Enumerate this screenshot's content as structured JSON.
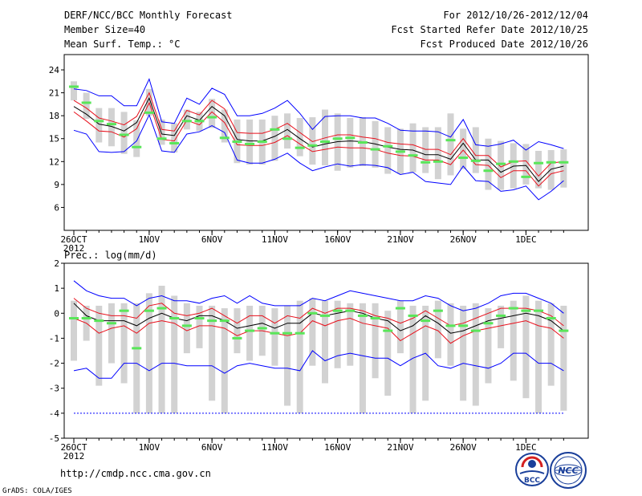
{
  "header": {
    "title": "DERF/NCC/BCC Monthly Forecast",
    "member_size": "Member Size=40",
    "variable": "Mean Surf. Temp.: °C",
    "period": "For 2012/10/26-2012/12/04",
    "started": "Fcst Started Refer Date 2012/10/25",
    "produced": "Fcst Produced Date 2012/10/26"
  },
  "footer": {
    "url": "http://cmdp.ncc.cma.gov.cn",
    "grads": "GrADS: COLA/IGES",
    "logo_bcc": "BCC",
    "logo_ncc": "NCC"
  },
  "colors": {
    "box": "#d2d2d2",
    "mean": "#000000",
    "spread": "#e8101c",
    "envelope": "#0000ff",
    "obs": "#59e659"
  },
  "chart_data": [
    {
      "type": "line",
      "title": "Mean Surf. Temp.: °C",
      "ylabel": "°C",
      "ylim": [
        3,
        26
      ],
      "yticks": [
        6,
        9,
        12,
        15,
        18,
        21,
        24
      ],
      "xticks": [
        {
          "day": 0,
          "label": "26OCT",
          "sub": "2012"
        },
        {
          "day": 6,
          "label": "1NOV"
        },
        {
          "day": 11,
          "label": "6NOV"
        },
        {
          "day": 16,
          "label": "11NOV"
        },
        {
          "day": 21,
          "label": "16NOV"
        },
        {
          "day": 26,
          "label": "21NOV"
        },
        {
          "day": 31,
          "label": "26NOV"
        },
        {
          "day": 36,
          "label": "1DEC"
        }
      ],
      "series": [
        {
          "name": "max",
          "values": [
            21.5,
            21.3,
            20.6,
            20.6,
            19.3,
            19.3,
            22.8,
            17.2,
            17,
            20.3,
            19.5,
            21.6,
            20.8,
            18,
            18,
            18.3,
            19,
            20,
            18.3,
            16.2,
            17.9,
            18,
            18,
            17.7,
            17.7,
            17,
            16.1,
            16,
            16,
            15.9,
            15.2,
            17.5,
            14.2,
            14,
            14.3,
            14.8,
            13.5,
            14.6,
            14.2,
            13.7
          ]
        },
        {
          "name": "upper",
          "values": [
            20,
            19,
            17.7,
            17.3,
            16.8,
            17.9,
            21,
            16.2,
            16,
            18.7,
            18.1,
            20,
            18.9,
            15.8,
            15.7,
            15.7,
            16.2,
            17,
            15.8,
            14.6,
            15.1,
            15.5,
            15.5,
            15.2,
            15,
            14.5,
            14.3,
            14.2,
            13.6,
            13.6,
            12.9,
            15,
            12.8,
            12.8,
            11.3,
            12,
            12.1,
            10.1,
            11.8,
            12
          ]
        },
        {
          "name": "mean",
          "values": [
            19.2,
            18.2,
            16.9,
            16.6,
            16,
            17.1,
            20.3,
            15.6,
            15.4,
            18,
            17.4,
            19.2,
            18,
            14.9,
            14.7,
            14.7,
            15.3,
            16.2,
            15,
            13.9,
            14.3,
            14.6,
            14.7,
            14.6,
            14.3,
            13.9,
            13.6,
            13.5,
            12.9,
            12.9,
            12.3,
            14.4,
            12.2,
            12.2,
            10.6,
            11.4,
            11.5,
            9.4,
            11,
            11.4
          ]
        },
        {
          "name": "lower",
          "values": [
            18.5,
            17.3,
            16,
            15.9,
            15.2,
            16.3,
            19.7,
            14.9,
            14.7,
            17.4,
            16.8,
            18.5,
            17.1,
            14.2,
            14.1,
            14.1,
            14.5,
            15.4,
            14.3,
            13.3,
            13.6,
            13.9,
            13.8,
            13.8,
            13.6,
            13.1,
            12.8,
            12.7,
            12.2,
            12.2,
            11.6,
            13.5,
            11.6,
            11.5,
            9.9,
            10.8,
            10.8,
            8.8,
            10.4,
            10.8
          ]
        },
        {
          "name": "min",
          "values": [
            16.1,
            15.6,
            13.3,
            13.2,
            13.3,
            14.7,
            18.1,
            13.4,
            13.2,
            15.6,
            15.9,
            16.7,
            15.8,
            12.2,
            11.8,
            11.8,
            12.3,
            13.1,
            11.8,
            10.8,
            11.3,
            11.7,
            11.4,
            11.6,
            11.5,
            11.2,
            10.3,
            10.6,
            9.4,
            9.2,
            9,
            11.4,
            9.5,
            9.4,
            8.1,
            8.3,
            8.8,
            7,
            8.1,
            9.5
          ]
        },
        {
          "name": "obs",
          "values": [
            21.8,
            19.7,
            17.3,
            16.9,
            15.5,
            13.9,
            18.4,
            15,
            14.4,
            17.3,
            17.3,
            17.8,
            15.1,
            14.6,
            14.3,
            14.6,
            16.2,
            15,
            13.8,
            14.1,
            14.6,
            15,
            15.1,
            14.5,
            13.6,
            14,
            13.3,
            12.8,
            11.9,
            12,
            14.8,
            12.5,
            12.1,
            10.8,
            11.7,
            12,
            10,
            11.8,
            11.9,
            11.9
          ]
        },
        {
          "name": "box_high",
          "values": [
            22.5,
            21,
            19,
            19,
            18.5,
            17.4,
            21.5,
            17.5,
            17,
            18.8,
            18.5,
            20.2,
            18.8,
            17.5,
            17.5,
            17.5,
            18,
            18.3,
            17.7,
            17.8,
            18.8,
            18.3,
            17.7,
            17.8,
            17.3,
            16.5,
            16.3,
            17,
            16.5,
            16.5,
            18.3,
            16.3,
            16.5,
            15,
            14.7,
            14.4,
            14.3,
            13.4,
            13.5,
            13.6
          ]
        },
        {
          "name": "box_low",
          "values": [
            20,
            17.6,
            14.5,
            14,
            13,
            12.6,
            18,
            14.2,
            13.2,
            16.2,
            16,
            16.4,
            14.5,
            11.8,
            11.6,
            11.6,
            12.1,
            13.7,
            12.7,
            11.6,
            11.5,
            10.8,
            11.2,
            11.4,
            11.2,
            10.4,
            10.4,
            10.6,
            10.5,
            9.7,
            10.2,
            11,
            10.5,
            8.3,
            8.3,
            8.5,
            9,
            8.5,
            8.3,
            8.6
          ]
        }
      ]
    },
    {
      "type": "line",
      "title": "Prec.: log(mm/d)",
      "ylabel": "log(mm/d)",
      "ylim": [
        -5,
        2
      ],
      "yticks": [
        -5,
        -4,
        -3,
        -2,
        -1,
        0,
        1,
        2
      ],
      "xticks": [
        {
          "day": 0,
          "label": "26OCT",
          "sub": "2012"
        },
        {
          "day": 6,
          "label": "1NOV"
        },
        {
          "day": 11,
          "label": "6NOV"
        },
        {
          "day": 16,
          "label": "11NOV"
        },
        {
          "day": 21,
          "label": "16NOV"
        },
        {
          "day": 26,
          "label": "21NOV"
        },
        {
          "day": 31,
          "label": "26NOV"
        },
        {
          "day": 36,
          "label": "1DEC"
        }
      ],
      "series": [
        {
          "name": "max",
          "values": [
            1.3,
            0.9,
            0.7,
            0.6,
            0.6,
            0.3,
            0.6,
            0.7,
            0.5,
            0.5,
            0.4,
            0.6,
            0.7,
            0.4,
            0.7,
            0.4,
            0.3,
            0.3,
            0.3,
            0.6,
            0.5,
            0.7,
            0.9,
            0.8,
            0.7,
            0.6,
            0.5,
            0.5,
            0.7,
            0.6,
            0.3,
            0.1,
            0.2,
            0.4,
            0.7,
            0.8,
            0.8,
            0.6,
            0.4,
            0
          ]
        },
        {
          "name": "upper",
          "values": [
            0.6,
            0.2,
            0,
            -0.1,
            -0.1,
            -0.2,
            0.3,
            0.4,
            0,
            -0.1,
            0,
            0.2,
            -0.1,
            -0.4,
            -0.1,
            -0.1,
            -0.4,
            -0.1,
            -0.2,
            0.2,
            0,
            0.2,
            0.2,
            0.1,
            -0.1,
            -0.2,
            -0.4,
            -0.2,
            0.1,
            -0.2,
            -0.5,
            -0.4,
            -0.2,
            0,
            0.2,
            0.2,
            0.2,
            0.1,
            -0.1,
            -0.5
          ]
        },
        {
          "name": "mean",
          "values": [
            0.4,
            -0.1,
            -0.3,
            -0.3,
            -0.3,
            -0.5,
            -0.2,
            0,
            -0.2,
            -0.3,
            -0.1,
            -0.1,
            -0.3,
            -0.6,
            -0.5,
            -0.4,
            -0.6,
            -0.4,
            -0.4,
            0,
            -0.1,
            0,
            0.1,
            0,
            -0.2,
            -0.3,
            -0.7,
            -0.5,
            -0.1,
            -0.4,
            -0.8,
            -0.7,
            -0.5,
            -0.3,
            -0.2,
            -0.1,
            0,
            -0.1,
            -0.3,
            -0.7
          ]
        },
        {
          "name": "lower",
          "values": [
            -0.2,
            -0.4,
            -0.8,
            -0.6,
            -0.5,
            -0.8,
            -0.4,
            -0.3,
            -0.4,
            -0.7,
            -0.5,
            -0.5,
            -0.6,
            -0.9,
            -0.7,
            -0.7,
            -0.8,
            -0.9,
            -0.8,
            -0.3,
            -0.5,
            -0.3,
            -0.2,
            -0.4,
            -0.5,
            -0.6,
            -1.1,
            -0.8,
            -0.5,
            -0.7,
            -1.2,
            -0.9,
            -0.7,
            -0.6,
            -0.5,
            -0.4,
            -0.3,
            -0.5,
            -0.6,
            -1
          ]
        },
        {
          "name": "min",
          "values": [
            -2.3,
            -2.2,
            -2.6,
            -2.6,
            -2,
            -2,
            -2.3,
            -2,
            -2,
            -2.1,
            -2.1,
            -2.1,
            -2.4,
            -2.1,
            -2,
            -2.1,
            -2.2,
            -2.2,
            -2.3,
            -1.5,
            -1.9,
            -1.7,
            -1.6,
            -1.7,
            -1.8,
            -1.8,
            -2.1,
            -1.8,
            -1.6,
            -2.1,
            -2.2,
            -2,
            -2.1,
            -2.2,
            -2,
            -1.6,
            -1.6,
            -2,
            -2,
            -2.3
          ]
        },
        {
          "name": "obs",
          "values": [
            -0.2,
            -0.2,
            -0.3,
            -0.4,
            0.1,
            -1.4,
            0.1,
            0.2,
            -0.2,
            -0.5,
            -0.2,
            -0.3,
            -0.3,
            -1,
            -0.7,
            -0.6,
            -0.8,
            -0.8,
            -0.8,
            0,
            -0.1,
            0.1,
            0.1,
            -0.1,
            -0.2,
            -0.7,
            0.2,
            -0.1,
            -0.3,
            0.1,
            -0.5,
            -0.5,
            -0.7,
            -0.4,
            -0.1,
            0.2,
            0.1,
            0.1,
            -0.2,
            -0.7
          ]
        },
        {
          "name": "box_high",
          "values": [
            0.5,
            0.3,
            0.3,
            0.4,
            0.4,
            0.4,
            0.8,
            1.1,
            0.7,
            0.4,
            0.3,
            0.3,
            0.2,
            0.2,
            0.3,
            0.3,
            0.2,
            0.3,
            0.5,
            0.6,
            0.5,
            0.5,
            0.4,
            0.4,
            0.4,
            0.1,
            0.5,
            0.3,
            0.3,
            0.5,
            0.4,
            0.3,
            0.4,
            0.2,
            0.3,
            0.5,
            0.7,
            0.5,
            0.4,
            0.3
          ]
        },
        {
          "name": "box_low",
          "values": [
            -1.9,
            -1.1,
            -2.9,
            -2,
            -2.8,
            -4,
            -4,
            -4,
            -4,
            -1.6,
            -1.4,
            -3.5,
            -4,
            -1.6,
            -1.9,
            -1.7,
            -2.1,
            -3.7,
            -4,
            -2.1,
            -2.8,
            -2.2,
            -2.1,
            -4,
            -2.6,
            -3.3,
            -1.6,
            -4,
            -3.5,
            -1.8,
            -2.1,
            -3.5,
            -3.7,
            -2.8,
            -1.4,
            -2.7,
            -3.4,
            -4,
            -2.9,
            -3.9
          ]
        }
      ],
      "floor_line": -4
    }
  ]
}
